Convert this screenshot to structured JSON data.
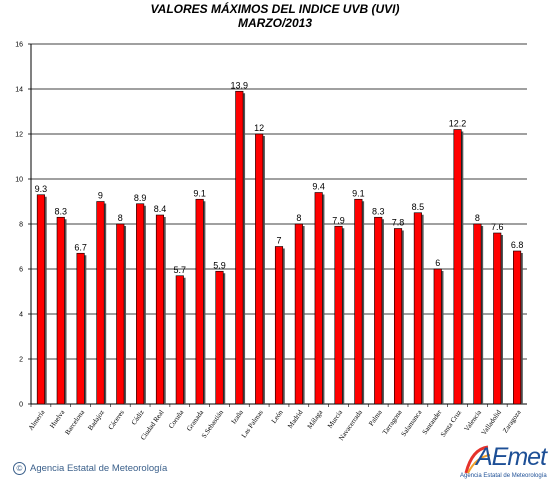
{
  "chart_data": {
    "type": "bar",
    "title": "VALORES MÁXIMOS DEL INDICE UVB (UVI)",
    "subtitle": "MARZO/2013",
    "categories": [
      "Almería",
      "Huelva",
      "Barcelona",
      "Badajoz",
      "Cáceres",
      "Cádiz",
      "Ciudad Real",
      "Coruña",
      "Granada",
      "S.Sebastián",
      "Izaña",
      "Las Palmas",
      "León",
      "Madrid",
      "Málaga",
      "Murcia",
      "Navacerrada",
      "Palma",
      "Tarragona",
      "Salamanca",
      "Santander",
      "Santa Cruz",
      "Valencia",
      "Valladolid",
      "Zaragoza"
    ],
    "values": [
      9.3,
      8.3,
      6.7,
      9,
      8,
      8.9,
      8.4,
      5.7,
      9.1,
      5.9,
      13.9,
      12,
      7,
      8,
      9.4,
      7.9,
      9.1,
      8.3,
      7.8,
      8.5,
      6,
      12.2,
      8,
      7.6,
      6.8
    ],
    "value_labels": [
      "9.3",
      "8.3",
      "6.7",
      "9",
      "8",
      "8.9",
      "8.4",
      "5.7",
      "9.1",
      "5.9",
      "13.9",
      "12",
      "7",
      "8",
      "9.4",
      "7.9",
      "9.1",
      "8.3",
      "7.8",
      "8.5",
      "6",
      "12.2",
      "8",
      "7.6",
      "6.8"
    ],
    "yticks": [
      0,
      2,
      4,
      6,
      8,
      10,
      12,
      14,
      16
    ],
    "ylim": [
      0,
      16
    ],
    "grid": true,
    "bar_color": "#ff0000"
  },
  "footer": {
    "copyright_symbol": "©",
    "agency": "Agencia Estatal de Meteorología"
  },
  "logo": {
    "name": "AEmet",
    "subtitle": "Agencia Estatal de Meteorología"
  }
}
